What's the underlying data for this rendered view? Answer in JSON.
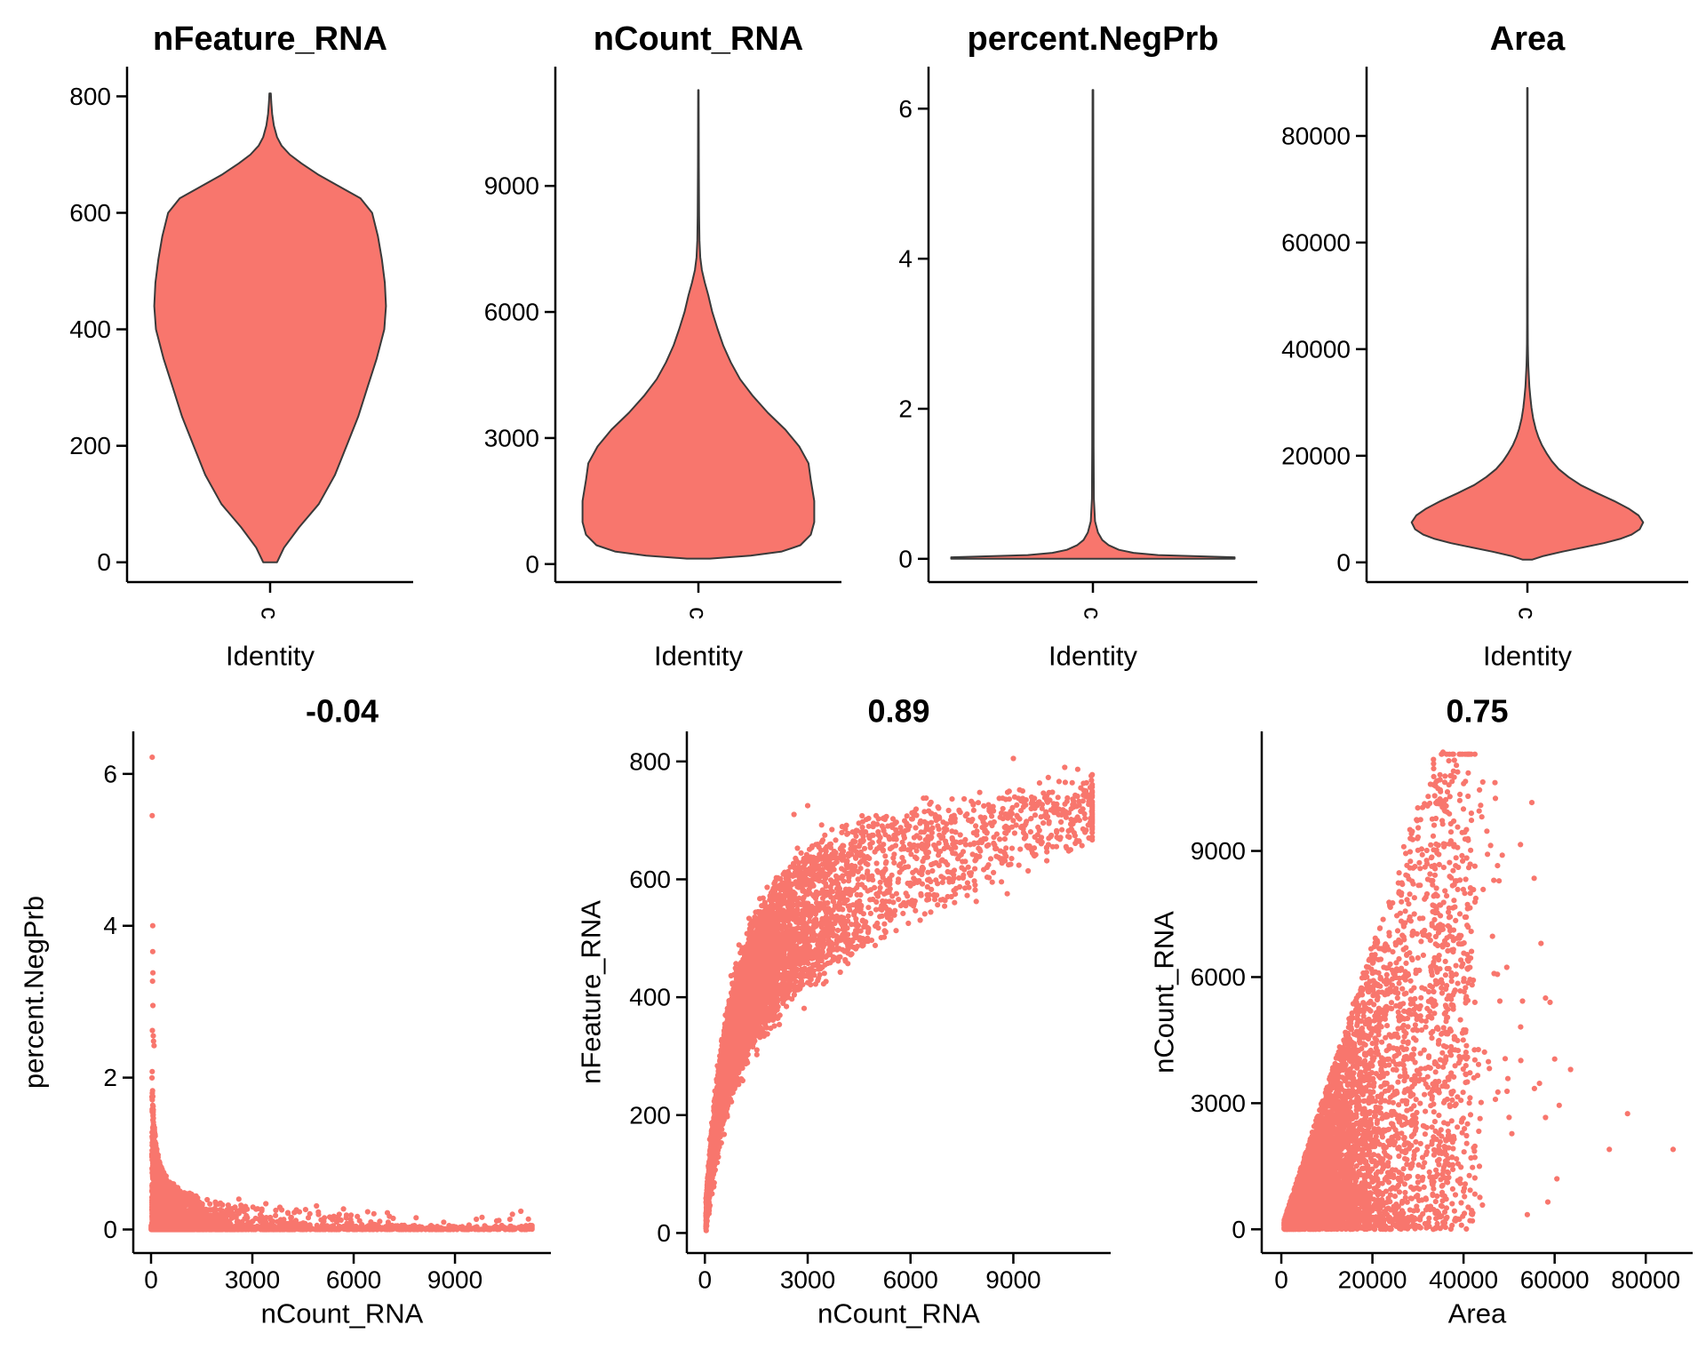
{
  "figure": {
    "background": "#FFFFFF",
    "accent": "#F8766D",
    "violin_outline": "#3A3A3A",
    "axis_color": "#000000",
    "text_color": "#000000"
  },
  "chart_data": [
    {
      "id": "violin-nfeature-rna",
      "type": "violin",
      "title": "nFeature_RNA",
      "xlabel": "Identity",
      "category": "c",
      "ylim": [
        -34,
        851
      ],
      "yticks": [
        0,
        200,
        400,
        600,
        800
      ],
      "width_frac": 0.81,
      "profile": [
        [
          0,
          0.06
        ],
        [
          25,
          0.12
        ],
        [
          60,
          0.25
        ],
        [
          100,
          0.42
        ],
        [
          150,
          0.56
        ],
        [
          200,
          0.66
        ],
        [
          250,
          0.76
        ],
        [
          300,
          0.84
        ],
        [
          350,
          0.92
        ],
        [
          400,
          0.985
        ],
        [
          440,
          1.0
        ],
        [
          480,
          0.99
        ],
        [
          520,
          0.965
        ],
        [
          560,
          0.93
        ],
        [
          600,
          0.88
        ],
        [
          625,
          0.78
        ],
        [
          645,
          0.6
        ],
        [
          665,
          0.42
        ],
        [
          685,
          0.27
        ],
        [
          700,
          0.17
        ],
        [
          715,
          0.1
        ],
        [
          730,
          0.06
        ],
        [
          750,
          0.032
        ],
        [
          770,
          0.018
        ],
        [
          790,
          0.01
        ],
        [
          805,
          0.006
        ]
      ]
    },
    {
      "id": "violin-ncount-rna",
      "type": "violin",
      "title": "nCount_RNA",
      "xlabel": "Identity",
      "category": "c",
      "ylim": [
        -428,
        11838
      ],
      "yticks": [
        0,
        3000,
        6000,
        9000
      ],
      "width_frac": 0.81,
      "profile": [
        [
          130,
          0.1
        ],
        [
          200,
          0.45
        ],
        [
          300,
          0.72
        ],
        [
          450,
          0.88
        ],
        [
          700,
          0.97
        ],
        [
          1000,
          1.0
        ],
        [
          1500,
          1.0
        ],
        [
          2000,
          0.97
        ],
        [
          2400,
          0.95
        ],
        [
          2800,
          0.87
        ],
        [
          3200,
          0.75
        ],
        [
          3600,
          0.6
        ],
        [
          4000,
          0.47
        ],
        [
          4400,
          0.36
        ],
        [
          4800,
          0.28
        ],
        [
          5200,
          0.215
        ],
        [
          5600,
          0.165
        ],
        [
          6000,
          0.12
        ],
        [
          6400,
          0.085
        ],
        [
          6700,
          0.055
        ],
        [
          7000,
          0.03
        ],
        [
          7300,
          0.016
        ],
        [
          7700,
          0.009
        ],
        [
          8300,
          0.006
        ],
        [
          9500,
          0.004
        ],
        [
          10400,
          0.003
        ],
        [
          11280,
          0.0025
        ]
      ]
    },
    {
      "id": "violin-percent-negprb",
      "type": "violin",
      "title": "percent.NegPrb",
      "xlabel": "Identity",
      "category": "c",
      "ylim": [
        -0.31,
        6.56
      ],
      "yticks": [
        0,
        2,
        4,
        6
      ],
      "width_frac": 0.88,
      "profile": [
        [
          0,
          0.98
        ],
        [
          0.02,
          0.98
        ],
        [
          0.05,
          0.45
        ],
        [
          0.08,
          0.28
        ],
        [
          0.12,
          0.18
        ],
        [
          0.18,
          0.11
        ],
        [
          0.25,
          0.065
        ],
        [
          0.35,
          0.035
        ],
        [
          0.5,
          0.015
        ],
        [
          0.8,
          0.007
        ],
        [
          1.5,
          0.005
        ],
        [
          3,
          0.004
        ],
        [
          5,
          0.003
        ],
        [
          6.25,
          0.0025
        ]
      ]
    },
    {
      "id": "violin-area",
      "type": "violin",
      "title": "Area",
      "xlabel": "Identity",
      "category": "c",
      "ylim": [
        -3700,
        93000
      ],
      "yticks": [
        0,
        20000,
        40000,
        60000,
        80000
      ],
      "width_frac": 0.72,
      "profile": [
        [
          500,
          0.04
        ],
        [
          1200,
          0.14
        ],
        [
          2000,
          0.3
        ],
        [
          2800,
          0.48
        ],
        [
          3600,
          0.66
        ],
        [
          4400,
          0.8
        ],
        [
          5200,
          0.9
        ],
        [
          6200,
          0.97
        ],
        [
          7500,
          1.0
        ],
        [
          8800,
          0.96
        ],
        [
          10000,
          0.88
        ],
        [
          11500,
          0.75
        ],
        [
          13000,
          0.6
        ],
        [
          14500,
          0.46
        ],
        [
          16000,
          0.355
        ],
        [
          17500,
          0.27
        ],
        [
          19000,
          0.21
        ],
        [
          20500,
          0.165
        ],
        [
          22000,
          0.125
        ],
        [
          23500,
          0.095
        ],
        [
          25000,
          0.072
        ],
        [
          27000,
          0.05
        ],
        [
          29000,
          0.035
        ],
        [
          31000,
          0.025
        ],
        [
          33000,
          0.017
        ],
        [
          35000,
          0.012
        ],
        [
          37000,
          0.008
        ],
        [
          39000,
          0.0055
        ],
        [
          41000,
          0.004
        ],
        [
          45000,
          0.003
        ],
        [
          52000,
          0.0027
        ],
        [
          60000,
          0.0024
        ],
        [
          70000,
          0.0021
        ],
        [
          89000,
          0.002
        ]
      ]
    },
    {
      "id": "scatter-ncount-vs-negprb",
      "type": "scatter",
      "title": "-0.04",
      "xlabel": "nCount_RNA",
      "ylabel": "percent.NegPrb",
      "xlim": [
        -526,
        11840
      ],
      "xticks": [
        0,
        3000,
        6000,
        9000
      ],
      "ylim": [
        -0.31,
        6.56
      ],
      "yticks": [
        0,
        2,
        4,
        6
      ],
      "seed": 101,
      "generators": [
        {
          "n": 2200,
          "x": {
            "mix": [
              [
                0.5,
                "exp",
                700,
                0
              ],
              [
                0.3,
                "exp",
                2600,
                0
              ],
              [
                0.2,
                "unif",
                0,
                11280
              ]
            ],
            "min": 5,
            "max": 11280
          },
          "y": {
            "form": "pow_unif",
            "scale": 0.055,
            "pow": 3
          }
        },
        {
          "n": 2200,
          "x": {
            "mix": [
              [
                0.75,
                "exp",
                430,
                25
              ],
              [
                0.25,
                "exp",
                2100,
                25
              ]
            ],
            "min": 25,
            "max": 11280
          },
          "y": {
            "form": "decay",
            "a": 2.3,
            "x0": 30,
            "p": 0.45,
            "upow": 1.7,
            "noise": 0.035,
            "cap": 2.45
          }
        }
      ],
      "outliers": [
        [
          35,
          6.22
        ],
        [
          35,
          5.45
        ],
        [
          50,
          4.0
        ],
        [
          50,
          3.66
        ],
        [
          55,
          3.38
        ],
        [
          45,
          3.27
        ],
        [
          55,
          2.95
        ],
        [
          40,
          2.62
        ],
        [
          65,
          2.55
        ],
        [
          75,
          2.48
        ],
        [
          90,
          2.42
        ],
        [
          2600,
          0.4
        ],
        [
          3400,
          0.34
        ],
        [
          4900,
          0.31
        ],
        [
          5700,
          0.27
        ],
        [
          7000,
          0.22
        ],
        [
          9800,
          0.16
        ],
        [
          10300,
          0.12
        ],
        [
          10700,
          0.2
        ],
        [
          10950,
          0.24
        ],
        [
          11280,
          0.02
        ]
      ]
    },
    {
      "id": "scatter-ncount-vs-nfeature",
      "type": "scatter",
      "title": "0.89",
      "xlabel": "nCount_RNA",
      "ylabel": "nFeature_RNA",
      "xlim": [
        -526,
        11840
      ],
      "xticks": [
        0,
        3000,
        6000,
        9000
      ],
      "ylim": [
        -34,
        851
      ],
      "yticks": [
        0,
        200,
        400,
        600,
        800
      ],
      "seed": 202,
      "generators": [
        {
          "n": 5600,
          "x": {
            "mix": [
              [
                0.68,
                "exp",
                1400,
                30
              ],
              [
                0.27,
                "exp",
                3300,
                30
              ],
              [
                0.05,
                "unif",
                6000,
                11300
              ]
            ],
            "min": 25,
            "max": 11300
          },
          "y": {
            "form": "sat",
            "ymax": 810,
            "k": 800,
            "spread": 0.42,
            "xspread": 15000,
            "noise": 14,
            "min": 3,
            "max": 806
          }
        }
      ],
      "outliers": [
        [
          9000,
          805
        ],
        [
          10500,
          790
        ],
        [
          11280,
          768
        ],
        [
          3000,
          725
        ],
        [
          2600,
          710
        ]
      ]
    },
    {
      "id": "scatter-area-vs-ncount",
      "type": "scatter",
      "title": "0.75",
      "xlabel": "Area",
      "ylabel": "nCount_RNA",
      "xlim": [
        -4300,
        90300
      ],
      "xticks": [
        0,
        20000,
        40000,
        60000,
        80000
      ],
      "ylim": [
        -564,
        11844
      ],
      "yticks": [
        0,
        3000,
        6000,
        9000
      ],
      "seed": 303,
      "generators": [
        {
          "n": 5000,
          "x": {
            "mix": [
              [
                0.9,
                "halfnorm",
                13500,
                600
              ],
              [
                0.1,
                "unif",
                25000,
                42000
              ]
            ],
            "min": 500,
            "max": 42500
          },
          "y": {
            "form": "fan",
            "slope": 0.34,
            "upow": 1.35,
            "max": 11300
          }
        },
        {
          "n": 280,
          "x": {
            "mix": [
              [
                1,
                "exp",
                5500,
                33000
              ]
            ],
            "min": 33000,
            "max": 58000
          },
          "y": {
            "form": "unif",
            "min": 300,
            "max": 10800
          }
        }
      ],
      "outliers": [
        [
          35500,
          11350
        ],
        [
          37800,
          10900
        ],
        [
          41000,
          10300
        ],
        [
          43500,
          10450
        ],
        [
          47000,
          10250
        ],
        [
          55000,
          10150
        ],
        [
          55500,
          8350
        ],
        [
          52500,
          9150
        ],
        [
          48500,
          8900
        ],
        [
          57000,
          6800
        ],
        [
          59000,
          5400
        ],
        [
          60000,
          4050
        ],
        [
          63500,
          3800
        ],
        [
          61000,
          2950
        ],
        [
          76000,
          2750
        ],
        [
          72000,
          1900
        ],
        [
          86000,
          1900
        ],
        [
          60500,
          1200
        ],
        [
          58500,
          650
        ],
        [
          54000,
          350
        ]
      ]
    }
  ]
}
